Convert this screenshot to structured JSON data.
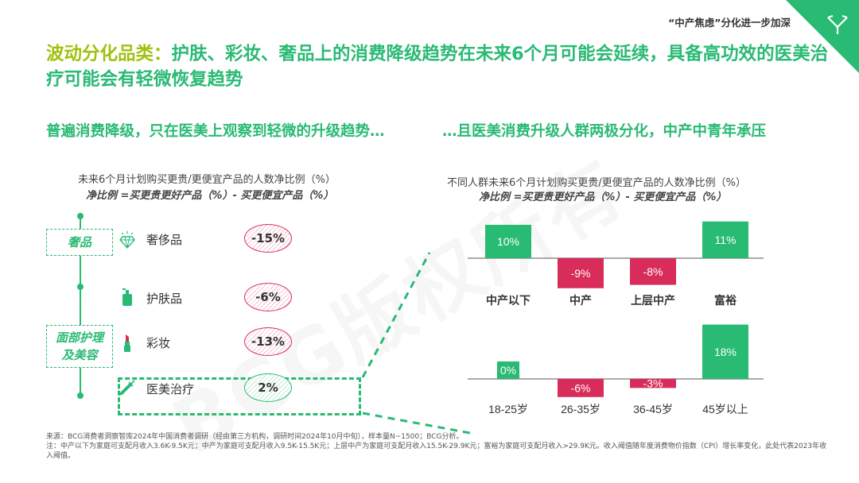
{
  "section_tag": "“中产焦虑”分化进一步加深",
  "headline": {
    "lead": "波动分化品类：",
    "rest": "护肤、彩妆、奢品上的消费降级趋势在未来6个月可能会延续，具备高功效的医美治疗可能会有轻微恢复趋势"
  },
  "left": {
    "subtitle": "普遍消费降级，只在医美上观察到轻微的升级趋势…",
    "caption1": "未来6个月计划购买更贵/更便宜产品的人数净比例（%）",
    "caption2": "净比例 =买更贵更好产品（%）- 买更便宜产品（%）",
    "categories": [
      {
        "label": "奢品"
      },
      {
        "label": "面部护理及美容"
      }
    ],
    "items": [
      {
        "name": "奢侈品",
        "value": "-15%",
        "icon": "diamond-icon"
      },
      {
        "name": "护肤品",
        "value": "-6%",
        "icon": "pump-bottle-icon"
      },
      {
        "name": "彩妆",
        "value": "-13%",
        "icon": "lipstick-icon"
      },
      {
        "name": "医美治疗",
        "value": "2%",
        "icon": "syringe-icon"
      }
    ]
  },
  "right": {
    "subtitle": "…且医美消费升级人群两极分化，中产中青年承压",
    "caption1": "不同人群未来6个月计划购买更贵/更便宜产品的人数净比例（%）",
    "caption2": "净比例 =买更贵更好产品（%）- 买更便宜产品（%）"
  },
  "chart_data": [
    {
      "type": "bar",
      "categories": [
        "中产以下",
        "中产",
        "上层中产",
        "富裕"
      ],
      "values": [
        10,
        -9,
        -8,
        11
      ],
      "labels": [
        "10%",
        "-9%",
        "-8%",
        "11%"
      ],
      "ylim": [
        -12,
        12
      ]
    },
    {
      "type": "bar",
      "categories": [
        "18-25岁",
        "26-35岁",
        "36-45岁",
        "45岁以上"
      ],
      "values": [
        0,
        -6,
        -3,
        18
      ],
      "labels": [
        "0%",
        "-6%",
        "-3%",
        "18%"
      ],
      "ylim": [
        -8,
        19
      ]
    }
  ],
  "colors": {
    "green": "#29ba74",
    "red": "#d82d5b",
    "olive": "#9ec20f"
  },
  "watermark": "BCG版权所有",
  "footnote": {
    "source": "来源：BCG消费者洞察智库2024年中国消费者调研（经由第三方机构，调研时间2024年10月中旬），样本量N~1500；BCG分析。",
    "note": "注：中产以下为家庭可支配月收入3.6K-9.5K元；中产为家庭可支配月收入9.5K-15.5K元；上层中产为家庭可支配月收入15.5K-29.9K元；富裕为家庭可支配月收入>29.9K元。收入阈值随年度消费物价指数（CPI）增长率变化，此处代表2023年收入阈值。"
  }
}
